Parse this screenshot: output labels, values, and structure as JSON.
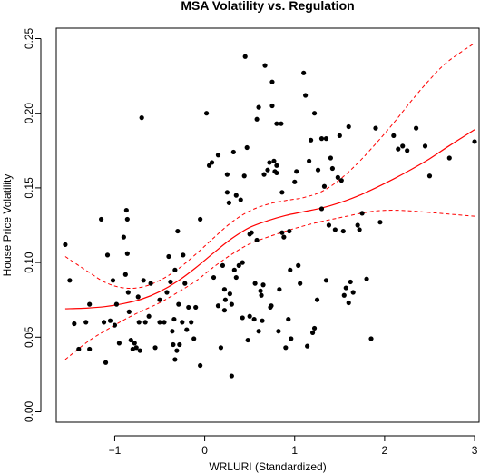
{
  "chart_data": {
    "type": "scatter",
    "title": "MSA Volatility vs. Regulation",
    "xlabel": "WRLURI (Standardized)",
    "ylabel": "House Price Volatility",
    "xlim": [
      -1.65,
      3.05
    ],
    "ylim": [
      -0.007,
      0.257
    ],
    "xticks": [
      -1,
      0,
      1,
      2,
      3
    ],
    "xtick_labels": [
      "−1",
      "0",
      "1",
      "2",
      "3"
    ],
    "yticks": [
      0.0,
      0.05,
      0.1,
      0.15,
      0.2,
      0.25
    ],
    "ytick_labels": [
      "0.00",
      "0.05",
      "0.10",
      "0.15",
      "0.20",
      "0.25"
    ],
    "grid": false,
    "legend": "none",
    "colors": {
      "points": "#000000",
      "fit": "#ff0000",
      "band": "#ff0000"
    },
    "points": [
      [
        -1.55,
        0.112
      ],
      [
        -1.5,
        0.088
      ],
      [
        -1.45,
        0.059
      ],
      [
        -1.4,
        0.042
      ],
      [
        -1.32,
        0.06
      ],
      [
        -1.28,
        0.042
      ],
      [
        -1.28,
        0.072
      ],
      [
        -1.15,
        0.129
      ],
      [
        -1.12,
        0.06
      ],
      [
        -1.1,
        0.033
      ],
      [
        -1.08,
        0.105
      ],
      [
        -1.05,
        0.061
      ],
      [
        -1.02,
        0.088
      ],
      [
        -1.0,
        0.058
      ],
      [
        -0.98,
        0.072
      ],
      [
        -0.95,
        0.046
      ],
      [
        -0.9,
        0.117
      ],
      [
        -0.88,
        0.092
      ],
      [
        -0.87,
        0.135
      ],
      [
        -0.86,
        0.129
      ],
      [
        -0.86,
        0.106
      ],
      [
        -0.85,
        0.08
      ],
      [
        -0.84,
        0.067
      ],
      [
        -0.82,
        0.048
      ],
      [
        -0.8,
        0.042
      ],
      [
        -0.78,
        0.046
      ],
      [
        -0.76,
        0.043
      ],
      [
        -0.74,
        0.077
      ],
      [
        -0.73,
        0.06
      ],
      [
        -0.72,
        0.041
      ],
      [
        -0.7,
        0.197
      ],
      [
        -0.68,
        0.088
      ],
      [
        -0.66,
        0.06
      ],
      [
        -0.62,
        0.064
      ],
      [
        -0.6,
        0.086
      ],
      [
        -0.55,
        0.043
      ],
      [
        -0.5,
        0.06
      ],
      [
        -0.5,
        0.075
      ],
      [
        -0.45,
        0.06
      ],
      [
        -0.42,
        0.08
      ],
      [
        -0.4,
        0.104
      ],
      [
        -0.38,
        0.087
      ],
      [
        -0.36,
        0.054
      ],
      [
        -0.35,
        0.045
      ],
      [
        -0.34,
        0.062
      ],
      [
        -0.33,
        0.035
      ],
      [
        -0.33,
        0.095
      ],
      [
        -0.31,
        0.041
      ],
      [
        -0.3,
        0.121
      ],
      [
        -0.29,
        0.072
      ],
      [
        -0.28,
        0.045
      ],
      [
        -0.25,
        0.06
      ],
      [
        -0.24,
        0.105
      ],
      [
        -0.22,
        0.086
      ],
      [
        -0.2,
        0.055
      ],
      [
        -0.18,
        0.07
      ],
      [
        -0.15,
        0.06
      ],
      [
        -0.12,
        0.049
      ],
      [
        -0.1,
        0.07
      ],
      [
        -0.05,
        0.129
      ],
      [
        -0.05,
        0.031
      ],
      [
        0.02,
        0.2
      ],
      [
        0.05,
        0.165
      ],
      [
        0.08,
        0.167
      ],
      [
        0.1,
        0.09
      ],
      [
        0.15,
        0.071
      ],
      [
        0.15,
        0.172
      ],
      [
        0.18,
        0.043
      ],
      [
        0.2,
        0.098
      ],
      [
        0.22,
        0.068
      ],
      [
        0.22,
        0.082
      ],
      [
        0.23,
        0.075
      ],
      [
        0.25,
        0.147
      ],
      [
        0.25,
        0.159
      ],
      [
        0.27,
        0.14
      ],
      [
        0.28,
        0.079
      ],
      [
        0.3,
        0.072
      ],
      [
        0.3,
        0.024
      ],
      [
        0.32,
        0.174
      ],
      [
        0.33,
        0.095
      ],
      [
        0.35,
        0.09
      ],
      [
        0.35,
        0.145
      ],
      [
        0.38,
        0.098
      ],
      [
        0.4,
        0.142
      ],
      [
        0.42,
        0.1
      ],
      [
        0.42,
        0.063
      ],
      [
        0.44,
        0.158
      ],
      [
        0.45,
        0.238
      ],
      [
        0.47,
        0.177
      ],
      [
        0.48,
        0.048
      ],
      [
        0.5,
        0.119
      ],
      [
        0.5,
        0.064
      ],
      [
        0.52,
        0.12
      ],
      [
        0.55,
        0.062
      ],
      [
        0.56,
        0.086
      ],
      [
        0.58,
        0.115
      ],
      [
        0.58,
        0.196
      ],
      [
        0.6,
        0.204
      ],
      [
        0.6,
        0.054
      ],
      [
        0.62,
        0.081
      ],
      [
        0.63,
        0.078
      ],
      [
        0.64,
        0.061
      ],
      [
        0.65,
        0.085
      ],
      [
        0.66,
        0.159
      ],
      [
        0.67,
        0.232
      ],
      [
        0.7,
        0.162
      ],
      [
        0.72,
        0.167
      ],
      [
        0.73,
        0.07
      ],
      [
        0.74,
        0.071
      ],
      [
        0.75,
        0.221
      ],
      [
        0.75,
        0.205
      ],
      [
        0.77,
        0.168
      ],
      [
        0.78,
        0.161
      ],
      [
        0.8,
        0.165
      ],
      [
        0.8,
        0.193
      ],
      [
        0.8,
        0.16
      ],
      [
        0.82,
        0.054
      ],
      [
        0.83,
        0.082
      ],
      [
        0.85,
        0.193
      ],
      [
        0.86,
        0.147
      ],
      [
        0.86,
        0.12
      ],
      [
        0.88,
        0.117
      ],
      [
        0.9,
        0.043
      ],
      [
        0.93,
        0.062
      ],
      [
        0.94,
        0.121
      ],
      [
        0.95,
        0.095
      ],
      [
        0.96,
        0.049
      ],
      [
        1.0,
        0.154
      ],
      [
        1.02,
        0.161
      ],
      [
        1.04,
        0.098
      ],
      [
        1.06,
        0.086
      ],
      [
        1.1,
        0.227
      ],
      [
        1.12,
        0.212
      ],
      [
        1.14,
        0.044
      ],
      [
        1.16,
        0.168
      ],
      [
        1.18,
        0.182
      ],
      [
        1.2,
        0.053
      ],
      [
        1.22,
        0.2
      ],
      [
        1.22,
        0.056
      ],
      [
        1.25,
        0.075
      ],
      [
        1.26,
        0.162
      ],
      [
        1.3,
        0.183
      ],
      [
        1.3,
        0.136
      ],
      [
        1.33,
        0.151
      ],
      [
        1.35,
        0.183
      ],
      [
        1.35,
        0.088
      ],
      [
        1.38,
        0.125
      ],
      [
        1.4,
        0.17
      ],
      [
        1.42,
        0.163
      ],
      [
        1.45,
        0.122
      ],
      [
        1.48,
        0.157
      ],
      [
        1.5,
        0.185
      ],
      [
        1.52,
        0.155
      ],
      [
        1.54,
        0.121
      ],
      [
        1.55,
        0.078
      ],
      [
        1.57,
        0.083
      ],
      [
        1.6,
        0.073
      ],
      [
        1.6,
        0.191
      ],
      [
        1.62,
        0.087
      ],
      [
        1.65,
        0.08
      ],
      [
        1.7,
        0.125
      ],
      [
        1.72,
        0.122
      ],
      [
        1.75,
        0.133
      ],
      [
        1.8,
        0.089
      ],
      [
        1.85,
        0.049
      ],
      [
        1.9,
        0.19
      ],
      [
        1.95,
        0.127
      ],
      [
        2.1,
        0.185
      ],
      [
        2.15,
        0.176
      ],
      [
        2.2,
        0.178
      ],
      [
        2.25,
        0.175
      ],
      [
        2.35,
        0.19
      ],
      [
        2.45,
        0.178
      ],
      [
        2.5,
        0.158
      ],
      [
        2.72,
        0.17
      ],
      [
        3.0,
        0.181
      ]
    ],
    "fit": {
      "x": [
        -1.55,
        -1.3,
        -1.1,
        -0.9,
        -0.7,
        -0.5,
        -0.3,
        -0.1,
        0.1,
        0.3,
        0.5,
        0.7,
        0.9,
        1.1,
        1.3,
        1.5,
        1.7,
        1.9,
        2.1,
        2.3,
        2.5,
        2.7,
        3.0
      ],
      "y": [
        0.069,
        0.0695,
        0.0705,
        0.0725,
        0.0755,
        0.0805,
        0.0875,
        0.0965,
        0.1065,
        0.116,
        0.1235,
        0.128,
        0.1315,
        0.134,
        0.1365,
        0.14,
        0.1445,
        0.15,
        0.156,
        0.1625,
        0.1695,
        0.1775,
        0.189
      ],
      "upper": [
        0.104,
        0.094,
        0.0865,
        0.083,
        0.0835,
        0.088,
        0.0955,
        0.1055,
        0.1165,
        0.127,
        0.1345,
        0.139,
        0.1415,
        0.1435,
        0.1475,
        0.1555,
        0.1665,
        0.1795,
        0.1935,
        0.2085,
        0.2225,
        0.2345,
        0.247
      ],
      "lower": [
        0.035,
        0.047,
        0.0545,
        0.0615,
        0.0675,
        0.073,
        0.08,
        0.0875,
        0.097,
        0.1055,
        0.1125,
        0.117,
        0.121,
        0.1245,
        0.1275,
        0.13,
        0.1325,
        0.1345,
        0.135,
        0.1345,
        0.1335,
        0.1325,
        0.131
      ]
    }
  }
}
